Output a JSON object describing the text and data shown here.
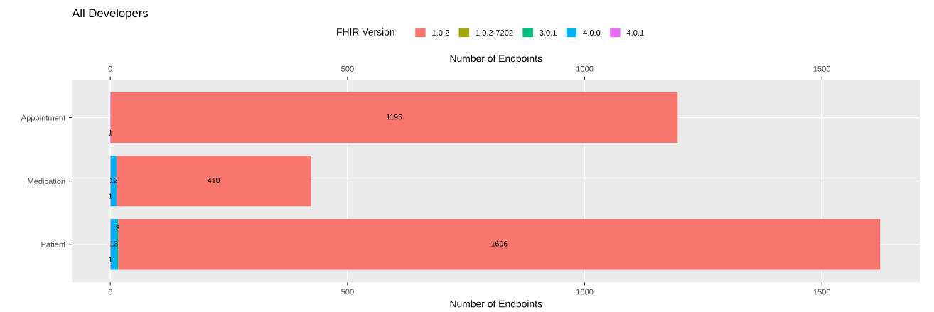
{
  "chart_data": {
    "type": "bar",
    "orientation": "horizontal",
    "stacked": true,
    "title": "All Developers",
    "xlabel": "Number of Endpoints",
    "x2label": "Number of Endpoints",
    "legend_title": "FHIR Version",
    "legend": "top",
    "categories": [
      "Appointment",
      "Medication",
      "Patient"
    ],
    "series": [
      {
        "name": "4.0.1",
        "color": "#e76bf3",
        "values": [
          1,
          1,
          1
        ]
      },
      {
        "name": "4.0.0",
        "color": "#00b0f6",
        "values": [
          null,
          12,
          13
        ]
      },
      {
        "name": "3.0.1",
        "color": "#00bf7d",
        "values": [
          null,
          null,
          3
        ]
      },
      {
        "name": "1.0.2-7202",
        "color": "#a3a500",
        "values": [
          null,
          null,
          null
        ]
      },
      {
        "name": "1.0.2",
        "color": "#f8766d",
        "values": [
          1195,
          410,
          1606
        ]
      }
    ],
    "data_labels": true,
    "grid": true,
    "xlim": [
      -81,
      1707
    ],
    "xticks": [
      0,
      500,
      1000,
      1500
    ],
    "x2lim": [
      -81,
      1707
    ],
    "x2ticks": [
      0,
      500,
      1000,
      1500
    ]
  }
}
